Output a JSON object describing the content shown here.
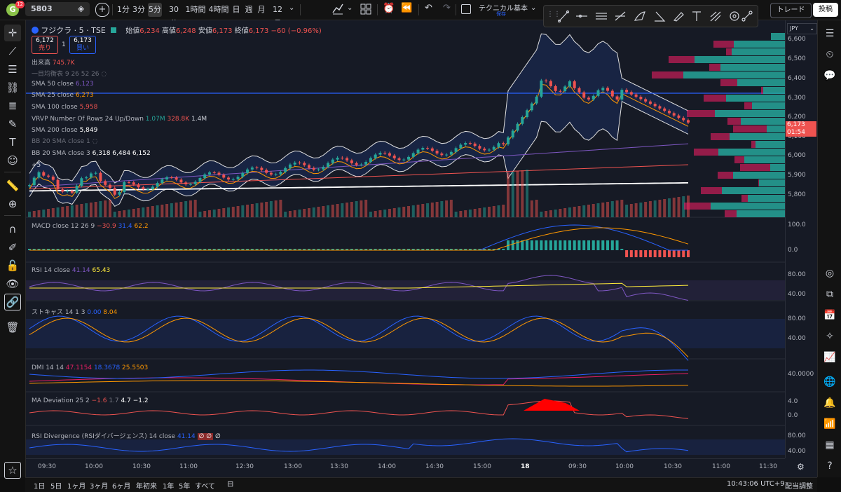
{
  "toolbar": {
    "avatar_letter": "G",
    "notification_count": "12",
    "symbol": "5803",
    "intervals": [
      "1分",
      "3分",
      "5分",
      "30分",
      "1時間",
      "4時間",
      "日",
      "週",
      "月",
      "12月"
    ],
    "active_interval": "5分",
    "layout_name": "テクニカル基本",
    "layout_status": "保存",
    "trade_label": "トレード",
    "post_label": "投稿"
  },
  "legend": {
    "title": "フジクラ · 5 · TSE",
    "open_label": "始値",
    "open": "6,234",
    "high_label": "高値",
    "high": "6,248",
    "low_label": "安値",
    "low": "6,173",
    "close_label": "終値",
    "close": "6,173",
    "change": "−60 (−0.96%)",
    "sell_price": "6,172",
    "sell_label": "売り",
    "spread": "1",
    "buy_price": "6,173",
    "buy_label": "買い",
    "volume_label": "出来高",
    "volume": "745.7K",
    "ichimoku": "一目均衡表 9 26 52 26",
    "sma50_label": "SMA 50 close",
    "sma50": "6,123",
    "sma25_label": "SMA 25 close",
    "sma25": "6,273",
    "sma100_label": "SMA 100 close",
    "sma100": "5,958",
    "vrvp_label": "VRVP Number Of Rows 24 Up/Down",
    "vrvp_up": "1.07M",
    "vrvp_down": "328.8K",
    "vrvp_total": "1.4M",
    "sma200_label": "SMA 200 close",
    "sma200": "5,849",
    "bb1_label": "BB 20 SMA close 1",
    "bb3_label": "BB 20 SMA close 3",
    "bb3_vals": "6,318  6,484  6,152",
    "more": "+5"
  },
  "price_axis": {
    "currency": "JPY",
    "ticks": [
      "6,600",
      "6,500",
      "6,400",
      "6,300",
      "6,200",
      "6,100",
      "6,000",
      "5,900",
      "5,800"
    ],
    "current_price": "6,173",
    "countdown": "01:54"
  },
  "panes": {
    "macd": {
      "label": "MACD close 12 26 9",
      "v1": "−30.9",
      "v2": "31.4",
      "v3": "62.2",
      "ticks": [
        "100.0",
        "0.0"
      ]
    },
    "rsi": {
      "label": "RSI 14 close",
      "v1": "41.14",
      "v2": "65.43",
      "ticks": [
        "80.00",
        "40.00"
      ]
    },
    "stoch": {
      "label": "ストキャス 14 1 3",
      "v1": "0.00",
      "v2": "8.04",
      "ticks": [
        "80.00",
        "40.00"
      ]
    },
    "dmi": {
      "label": "DMI 14 14",
      "v1": "47.1154",
      "v2": "18.3678",
      "v3": "25.5503",
      "ticks": [
        "40.0000"
      ]
    },
    "madev": {
      "label": "MA Deviation 25 2",
      "v1": "−1.6",
      "v2": "1.7",
      "v3": "4.7",
      "v4": "−1.2",
      "ticks": [
        "4.0",
        "0.0"
      ]
    },
    "rsidiv": {
      "label": "RSI Divergence (RSIダイバージェンス) 14 close",
      "v1": "41.14",
      "v2": "∅ ∅",
      "v3": "∅",
      "ticks": [
        "80.00",
        "40.00"
      ]
    }
  },
  "time_axis": [
    "09:30",
    "10:00",
    "10:30",
    "11:00",
    "12:30",
    "13:00",
    "13:30",
    "14:00",
    "14:30",
    "15:00",
    "18",
    "09:30",
    "10:00",
    "10:30",
    "11:00",
    "11:30"
  ],
  "bottom": {
    "ranges": [
      "1日",
      "5日",
      "1ヶ月",
      "3ヶ月",
      "6ヶ月",
      "年初来",
      "1年",
      "5年",
      "すべて"
    ],
    "clock": "10:43:06 UTC+9",
    "adjust_label": "配当調整"
  },
  "colors": {
    "up": "#26a69a",
    "down": "#ef5350",
    "background": "#161a25",
    "accent": "#2962ff"
  }
}
